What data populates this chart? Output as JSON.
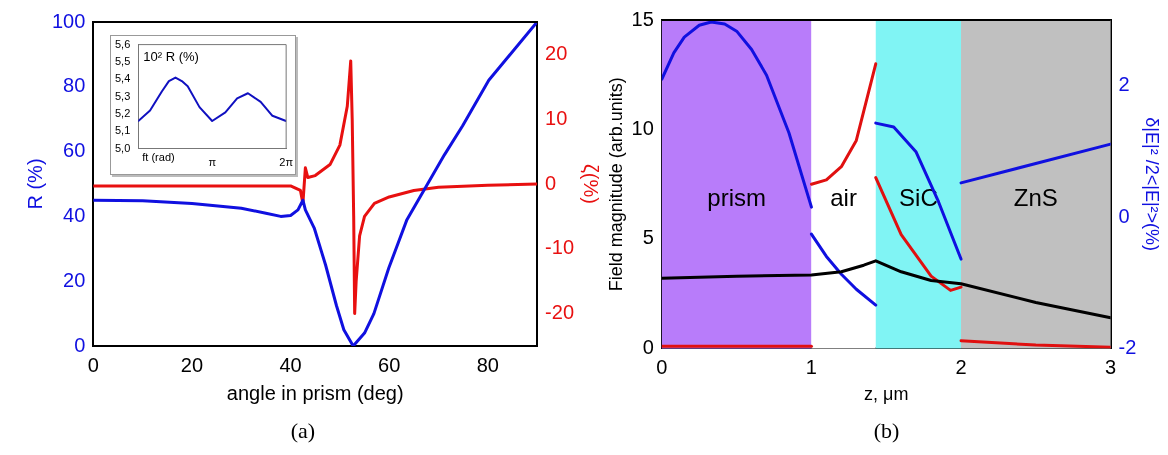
{
  "chart_data": [
    {
      "type": "line",
      "xlabel": "angle in prism (deg)",
      "ylabel": "R (%)",
      "y2label": "ζ(%)",
      "xlim": [
        0,
        90
      ],
      "xticks": [
        0,
        20,
        40,
        60,
        80
      ],
      "ylim": [
        0,
        100
      ],
      "yticks": [
        0,
        20,
        40,
        60,
        80,
        100
      ],
      "y2lim": [
        -25,
        25
      ],
      "y2ticks": [
        -20,
        -10,
        0,
        10,
        20
      ],
      "grid": false,
      "legend": false,
      "annotations": [
        "(a)"
      ],
      "series": [
        {
          "color": "#1010e0",
          "x": [
            0,
            10,
            20,
            30,
            35,
            38,
            40,
            41.5,
            42.5,
            43,
            44.8,
            47.1,
            49.3,
            50.8,
            52.7,
            55,
            56.9,
            59.9,
            63.6,
            67.4,
            71.2,
            74.9,
            80.2,
            90
          ],
          "values": [
            45,
            44.8,
            44,
            42.5,
            41,
            40,
            40.3,
            42,
            45,
            42,
            36.4,
            25,
            12.5,
            5,
            0,
            4,
            10,
            24,
            39,
            49,
            59,
            68,
            82,
            100
          ]
        },
        {
          "color": "#e81010",
          "axis": "y2",
          "x": [
            0,
            20,
            40,
            42,
            42.5,
            43,
            43.5,
            45,
            48,
            50,
            51.5,
            52.2,
            52.5,
            52.8,
            53,
            53.3,
            54,
            55,
            57,
            60,
            65,
            70,
            80,
            90
          ],
          "values": [
            -0.3,
            -0.3,
            -0.3,
            -1,
            -3,
            2.5,
            1,
            1.3,
            3,
            6,
            12,
            19,
            10,
            -5,
            -20,
            -15,
            -8,
            -5,
            -3,
            -2,
            -1,
            -0.5,
            -0.2,
            0
          ]
        }
      ]
    },
    {
      "type": "line",
      "xlabel": "ft (rad)",
      "ylabel": "10² R (%)",
      "xlim": [
        0,
        6.2832
      ],
      "xticks": [
        {
          "value": 3.1416,
          "label": "π"
        },
        {
          "value": 6.2832,
          "label": "2π"
        }
      ],
      "ylim": [
        5.0,
        5.6
      ],
      "yticks": [
        {
          "value": 5.0,
          "label": "5,0"
        },
        {
          "value": 5.1,
          "label": "5,1"
        },
        {
          "value": 5.2,
          "label": "5,2"
        },
        {
          "value": 5.3,
          "label": "5,3"
        },
        {
          "value": 5.4,
          "label": "5,4"
        },
        {
          "value": 5.5,
          "label": "5,5"
        },
        {
          "value": 5.6,
          "label": "5,6"
        }
      ],
      "grid": false,
      "legend": false,
      "series": [
        {
          "color": "#1010c0",
          "x": [
            0,
            0.5,
            1.0,
            1.3,
            1.58,
            1.85,
            2.1,
            2.6,
            3.14,
            3.7,
            4.2,
            4.66,
            5.2,
            5.7,
            6.28
          ],
          "values": [
            5.16,
            5.22,
            5.33,
            5.39,
            5.41,
            5.39,
            5.36,
            5.24,
            5.16,
            5.21,
            5.29,
            5.32,
            5.27,
            5.19,
            5.16
          ]
        }
      ]
    },
    {
      "type": "line",
      "xlabel": "z, μm",
      "ylabel": "Field magnitude (arb.units)",
      "y2label": "δ|E|² /2<|E|²>(%)",
      "xlim": [
        0,
        3
      ],
      "xticks": [
        0,
        1,
        2,
        3
      ],
      "ylim": [
        0,
        15
      ],
      "yticks": [
        0,
        5,
        10,
        15
      ],
      "y2lim": [
        -2,
        3
      ],
      "y2ticks": [
        -2,
        0,
        2
      ],
      "grid": false,
      "legend": false,
      "annotations": [
        "(b)"
      ],
      "bands": [
        {
          "axis": "x",
          "from": 0,
          "to": 1,
          "label": "prism",
          "color": "#b87cfa"
        },
        {
          "axis": "x",
          "from": 1,
          "to": 1.43,
          "label": "air",
          "color": "#ffffff"
        },
        {
          "axis": "x",
          "from": 1.43,
          "to": 2,
          "label": "SiC",
          "color": "#80f4f4"
        },
        {
          "axis": "x",
          "from": 2,
          "to": 3,
          "label": "ZnS",
          "color": "#c0c0c0"
        }
      ],
      "series": [
        {
          "color": "#000000",
          "x": [
            0,
            0.5,
            1.0,
            1.2,
            1.35,
            1.43,
            1.6,
            1.8,
            2.0,
            2.5,
            3.0
          ],
          "values": [
            3.2,
            3.3,
            3.35,
            3.5,
            3.8,
            4.0,
            3.5,
            3.1,
            2.95,
            2.1,
            1.4
          ]
        },
        {
          "color": "#e01010",
          "x": [
            0,
            1.0
          ],
          "values": [
            0.1,
            0.1
          ]
        },
        {
          "color": "#e01010",
          "x": [
            1.0,
            1.1,
            1.2,
            1.3,
            1.43
          ],
          "values": [
            7.5,
            7.7,
            8.3,
            9.5,
            13.0
          ]
        },
        {
          "color": "#e01010",
          "x": [
            1.43,
            1.6,
            1.8,
            1.93,
            2.0
          ],
          "values": [
            7.8,
            5.2,
            3.3,
            2.65,
            2.8
          ]
        },
        {
          "color": "#e01010",
          "x": [
            2.0,
            2.5,
            3.0
          ],
          "values": [
            0.35,
            0.15,
            0.05
          ]
        },
        {
          "color": "#1010e0",
          "axis": "y2",
          "x": [
            0,
            0.08,
            0.15,
            0.25,
            0.33,
            0.42,
            0.5,
            0.6,
            0.7,
            0.85,
            1.0
          ],
          "values": [
            2.1,
            2.5,
            2.74,
            2.92,
            2.97,
            2.94,
            2.83,
            2.55,
            2.16,
            1.28,
            0.15
          ]
        },
        {
          "color": "#1010e0",
          "axis": "y2",
          "x": [
            1.0,
            1.1,
            1.2,
            1.3,
            1.43
          ],
          "values": [
            -0.26,
            -0.6,
            -0.87,
            -1.1,
            -1.34
          ]
        },
        {
          "color": "#1010e0",
          "axis": "y2",
          "x": [
            1.43,
            1.55,
            1.7,
            1.85,
            2.0
          ],
          "values": [
            1.43,
            1.37,
            0.99,
            0.23,
            -0.64
          ]
        },
        {
          "color": "#1010e0",
          "axis": "y2",
          "x": [
            2.0,
            3.0
          ],
          "values": [
            0.52,
            1.11
          ]
        }
      ]
    }
  ]
}
